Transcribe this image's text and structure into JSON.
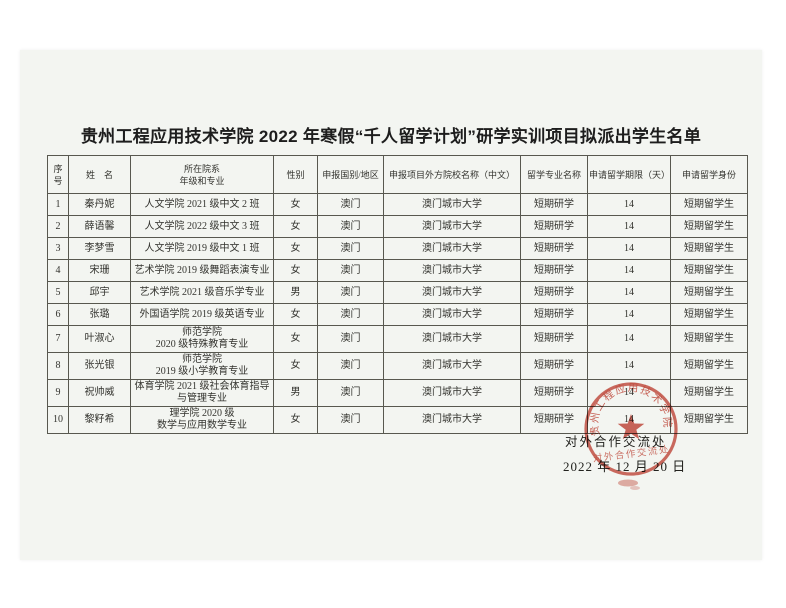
{
  "page": {
    "title": "贵州工程应用技术学院 2022 年寒假“千人留学计划”研学实训项目拟派出学生名单"
  },
  "table": {
    "headers": [
      "序\n号",
      "姓　名",
      "所在院系\n年级和专业",
      "性别",
      "申报国别/地区",
      "申报项目外方院校名称（中文）",
      "留学专业名称",
      "申请留学期限（天）",
      "申请留学身份"
    ],
    "columns": [
      "no",
      "name",
      "dept",
      "gender",
      "country",
      "school",
      "major",
      "days",
      "identity"
    ],
    "rows": [
      {
        "no": "1",
        "name": "秦丹妮",
        "dept": "人文学院 2021 级中文 2 班",
        "gender": "女",
        "country": "澳门",
        "school": "澳门城市大学",
        "major": "短期研学",
        "days": "14",
        "identity": "短期留学生"
      },
      {
        "no": "2",
        "name": "薛语馨",
        "dept": "人文学院 2022 级中文 3 班",
        "gender": "女",
        "country": "澳门",
        "school": "澳门城市大学",
        "major": "短期研学",
        "days": "14",
        "identity": "短期留学生"
      },
      {
        "no": "3",
        "name": "李梦雪",
        "dept": "人文学院 2019 级中文 1 班",
        "gender": "女",
        "country": "澳门",
        "school": "澳门城市大学",
        "major": "短期研学",
        "days": "14",
        "identity": "短期留学生"
      },
      {
        "no": "4",
        "name": "宋珊",
        "dept": "艺术学院 2019 级舞蹈表演专业",
        "gender": "女",
        "country": "澳门",
        "school": "澳门城市大学",
        "major": "短期研学",
        "days": "14",
        "identity": "短期留学生"
      },
      {
        "no": "5",
        "name": "邱宇",
        "dept": "艺术学院 2021 级音乐学专业",
        "gender": "男",
        "country": "澳门",
        "school": "澳门城市大学",
        "major": "短期研学",
        "days": "14",
        "identity": "短期留学生"
      },
      {
        "no": "6",
        "name": "张璐",
        "dept": "外国语学院 2019 级英语专业",
        "gender": "女",
        "country": "澳门",
        "school": "澳门城市大学",
        "major": "短期研学",
        "days": "14",
        "identity": "短期留学生"
      },
      {
        "no": "7",
        "name": "叶淑心",
        "dept": "师范学院\n2020 级特殊教育专业",
        "gender": "女",
        "country": "澳门",
        "school": "澳门城市大学",
        "major": "短期研学",
        "days": "14",
        "identity": "短期留学生"
      },
      {
        "no": "8",
        "name": "张光银",
        "dept": "师范学院\n2019 级小学教育专业",
        "gender": "女",
        "country": "澳门",
        "school": "澳门城市大学",
        "major": "短期研学",
        "days": "14",
        "identity": "短期留学生"
      },
      {
        "no": "9",
        "name": "祝帅威",
        "dept": "体育学院 2021 级社会体育指导\n与管理专业",
        "gender": "男",
        "country": "澳门",
        "school": "澳门城市大学",
        "major": "短期研学",
        "days": "14",
        "identity": "短期留学生"
      },
      {
        "no": "10",
        "name": "黎籽希",
        "dept": "理学院 2020 级\n数学与应用数学专业",
        "gender": "女",
        "country": "澳门",
        "school": "澳门城市大学",
        "major": "短期研学",
        "days": "14",
        "identity": "短期留学生"
      }
    ]
  },
  "footer": {
    "department": "对外合作交流处",
    "date": "2022 年 12 月 20 日"
  },
  "stamp": {
    "arc_text": "贵州工程应用技术学院",
    "inner_text": "对外合作交流处",
    "color": "#c2392b"
  }
}
